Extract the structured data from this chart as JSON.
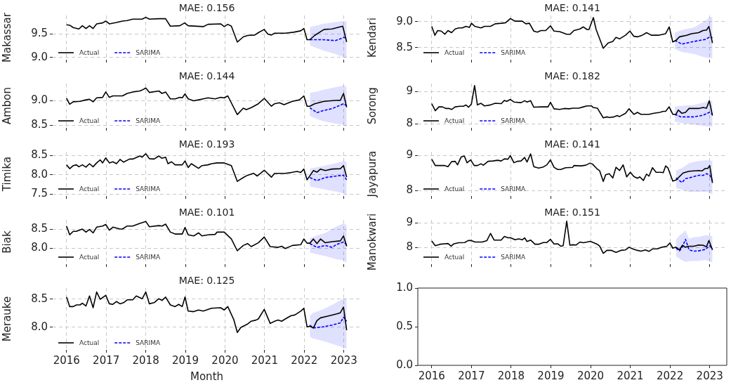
{
  "chart_data": [
    {
      "type": "line",
      "title": "MAE: 0.156",
      "ylabel": "Makassar",
      "xlim": [
        2015.65,
        2023.43
      ],
      "xticks": [
        2016,
        2017,
        2018,
        2019,
        2020,
        2021,
        2022,
        2023
      ],
      "ylim": [
        8.95,
        9.9
      ],
      "yticks": [
        {
          "value": 9,
          "label": "9.0"
        },
        9.5
      ],
      "tick_labels": "y",
      "grid": true,
      "legend": "lower left",
      "series": [
        {
          "name": "Actual",
          "color": "#000000",
          "line_style": "solid",
          "x": [
            2016,
            2016.08,
            2016.17,
            2016.31,
            2016.4,
            2016.49,
            2016.58,
            2016.67,
            2016.76,
            2016.91,
            2016.99,
            2017.08,
            2017.26,
            2017.41,
            2017.53,
            2017.67,
            2017.91,
            2018,
            2018.09,
            2018.33,
            2018.5,
            2018.62,
            2018.86,
            2018.98,
            2019.07,
            2019.45,
            2019.57,
            2019.89,
            2019.98,
            2020.07,
            2020.16,
            2020.31,
            2020.46,
            2020.57,
            2020.75,
            2020.84,
            2020.99,
            2021.08,
            2021.17,
            2021.25,
            2021.52,
            2021.73,
            2021.91,
            2021.99,
            2022.07,
            2022.14,
            2022.26,
            2022.5,
            2022.7,
            2022.97,
            2023.07
          ],
          "values": [
            9.7,
            9.69,
            9.64,
            9.61,
            9.68,
            9.62,
            9.68,
            9.62,
            9.72,
            9.74,
            9.78,
            9.72,
            9.75,
            9.78,
            9.79,
            9.82,
            9.82,
            9.86,
            9.82,
            9.83,
            9.83,
            9.67,
            9.68,
            9.74,
            9.68,
            9.66,
            9.71,
            9.72,
            9.66,
            9.71,
            9.67,
            9.33,
            9.44,
            9.47,
            9.48,
            9.53,
            9.6,
            9.5,
            9.48,
            9.52,
            9.52,
            9.54,
            9.57,
            9.62,
            9.38,
            9.38,
            9.47,
            9.6,
            9.61,
            9.67,
            9.33
          ]
        },
        {
          "name": "SARIMA",
          "color": "#0000ff",
          "line_style": "dashed",
          "x": [
            2022.14,
            2022.47,
            2022.79,
            2023.0,
            2023.07
          ],
          "values": [
            9.38,
            9.38,
            9.36,
            9.43,
            9.41
          ],
          "lower": [
            9.26,
            9.15,
            9.07,
            9.0,
            8.99
          ],
          "upper": [
            9.65,
            9.72,
            9.76,
            9.78,
            9.77
          ]
        }
      ]
    },
    {
      "type": "line",
      "title": "MAE: 0.141",
      "ylabel": "Kendari",
      "xlim": [
        2015.65,
        2023.43
      ],
      "xticks": [
        2016,
        2017,
        2018,
        2019,
        2020,
        2021,
        2022,
        2023
      ],
      "ylim": [
        8.27,
        9.12
      ],
      "yticks": [
        {
          "value": 8.5,
          "label": "8.5"
        },
        {
          "value": 9,
          "label": "9.0"
        }
      ],
      "tick_labels": "y",
      "grid": true,
      "legend": "lower left",
      "series": [
        {
          "name": "Actual",
          "color": "#000000",
          "line_style": "solid",
          "x": [
            2016,
            2016.08,
            2016.15,
            2016.24,
            2016.33,
            2016.41,
            2016.5,
            2016.59,
            2016.68,
            2016.77,
            2016.86,
            2016.95,
            2017,
            2017.09,
            2017.24,
            2017.33,
            2017.48,
            2017.6,
            2017.75,
            2017.86,
            2017.98,
            2018.1,
            2018.28,
            2018.37,
            2018.46,
            2018.57,
            2018.66,
            2018.75,
            2018.87,
            2018.99,
            2019.08,
            2019.22,
            2019.4,
            2019.49,
            2019.58,
            2019.73,
            2019.82,
            2019.91,
            2019.96,
            2020.07,
            2020.14,
            2020.32,
            2020.44,
            2020.56,
            2020.64,
            2020.73,
            2020.88,
            2020.99,
            2021.09,
            2021.18,
            2021.3,
            2021.41,
            2021.53,
            2021.71,
            2021.89,
            2021.98,
            2022.07,
            2022.15,
            2022.24,
            2022.42,
            2022.54,
            2022.72,
            2022.83,
            2022.92,
            2022.98,
            2023.07
          ],
          "values": [
            8.91,
            8.74,
            8.83,
            8.82,
            8.76,
            8.83,
            8.79,
            8.86,
            8.88,
            8.88,
            8.91,
            8.89,
            8.97,
            8.91,
            8.88,
            8.91,
            8.91,
            8.96,
            8.97,
            8.98,
            9.06,
            9.01,
            9.01,
            8.96,
            8.97,
            8.82,
            8.8,
            8.83,
            8.83,
            8.92,
            8.82,
            8.81,
            8.76,
            8.76,
            8.83,
            8.86,
            8.9,
            8.85,
            8.85,
            9.08,
            8.85,
            8.49,
            8.59,
            8.62,
            8.7,
            8.67,
            8.74,
            8.82,
            8.72,
            8.71,
            8.74,
            8.79,
            8.74,
            8.74,
            8.77,
            8.9,
            8.61,
            8.64,
            8.71,
            8.74,
            8.77,
            8.79,
            8.83,
            8.84,
            8.91,
            8.59
          ]
        },
        {
          "name": "SARIMA",
          "color": "#0000ff",
          "line_style": "dashed",
          "x": [
            2022.12,
            2022.3,
            2022.6,
            2022.89,
            2023.01,
            2023.07
          ],
          "values": [
            8.64,
            8.57,
            8.62,
            8.66,
            8.71,
            8.69
          ],
          "lower": [
            8.48,
            8.42,
            8.38,
            8.31,
            8.3,
            8.3
          ],
          "upper": [
            8.79,
            8.84,
            8.89,
            9.02,
            9.09,
            9.09
          ]
        }
      ]
    },
    {
      "type": "line",
      "title": "MAE: 0.144",
      "ylabel": "Ambon",
      "xlim": [
        2015.65,
        2023.43
      ],
      "xticks": [
        2016,
        2017,
        2018,
        2019,
        2020,
        2021,
        2022,
        2023
      ],
      "ylim": [
        8.45,
        9.35
      ],
      "yticks": [
        8.5,
        {
          "value": 9,
          "label": "9.0"
        }
      ],
      "tick_labels": "y",
      "grid": true,
      "legend": "lower left",
      "series": [
        {
          "name": "Actual",
          "color": "#000000",
          "line_style": "solid",
          "x": [
            2016,
            2016.08,
            2016.17,
            2016.34,
            2016.49,
            2016.58,
            2016.67,
            2016.76,
            2016.91,
            2016.99,
            2017.08,
            2017.17,
            2017.41,
            2017.53,
            2017.67,
            2017.85,
            2017.91,
            2018,
            2018.09,
            2018.33,
            2018.41,
            2018.5,
            2018.62,
            2018.74,
            2018.86,
            2018.92,
            2018.99,
            2019.07,
            2019.21,
            2019.33,
            2019.45,
            2019.57,
            2019.75,
            2019.89,
            2019.98,
            2020.07,
            2020.31,
            2020.46,
            2020.54,
            2020.66,
            2020.84,
            2020.99,
            2021.17,
            2021.25,
            2021.37,
            2021.49,
            2021.61,
            2021.7,
            2021.88,
            2021.99,
            2022.07,
            2022.14,
            2022.26,
            2022.5,
            2022.82,
            2022.91,
            2022.99,
            2023.07
          ],
          "values": [
            9.05,
            8.93,
            8.98,
            8.99,
            9.02,
            9.03,
            8.98,
            9.06,
            9.07,
            9.18,
            9.07,
            9.1,
            9.1,
            9.15,
            9.18,
            9.2,
            9.22,
            9.26,
            9.17,
            9.2,
            9.15,
            9.18,
            9.04,
            9.04,
            9.07,
            9.06,
            9.14,
            9.04,
            9.0,
            9.02,
            9.04,
            9.06,
            9.04,
            9.07,
            9.06,
            9.1,
            8.72,
            8.85,
            8.82,
            8.86,
            8.94,
            9.05,
            8.89,
            8.94,
            8.96,
            8.92,
            8.96,
            8.99,
            9.02,
            9.1,
            8.89,
            8.89,
            8.94,
            8.99,
            9.01,
            9.01,
            9.15,
            8.87
          ]
        },
        {
          "name": "SARIMA",
          "color": "#0000ff",
          "line_style": "dashed",
          "x": [
            2022.14,
            2022.32,
            2022.47,
            2022.7,
            2022.99,
            2023.07
          ],
          "values": [
            8.86,
            8.76,
            8.8,
            8.84,
            8.94,
            8.9
          ],
          "lower": [
            8.69,
            8.63,
            8.59,
            8.55,
            8.51,
            8.47
          ],
          "upper": [
            9.16,
            9.19,
            9.22,
            9.26,
            9.31,
            9.28
          ]
        }
      ]
    },
    {
      "type": "line",
      "title": "MAE: 0.182",
      "ylabel": "Sorong",
      "xlim": [
        2015.65,
        2023.43
      ],
      "xticks": [
        2016,
        2017,
        2018,
        2019,
        2020,
        2021,
        2022,
        2023
      ],
      "ylim": [
        7.88,
        9.25
      ],
      "yticks": [
        8,
        9
      ],
      "tick_labels": "y",
      "grid": true,
      "legend": "lower left",
      "series": [
        {
          "name": "Actual",
          "color": "#000000",
          "line_style": "solid",
          "x": [
            2016,
            2016.09,
            2016.18,
            2016.27,
            2016.36,
            2016.44,
            2016.5,
            2016.59,
            2016.71,
            2016.8,
            2016.86,
            2016.93,
            2017,
            2017.08,
            2017.15,
            2017.24,
            2017.33,
            2017.48,
            2017.6,
            2017.75,
            2017.83,
            2017.89,
            2017.98,
            2018.07,
            2018.25,
            2018.34,
            2018.4,
            2018.49,
            2018.57,
            2018.75,
            2018.93,
            2018.99,
            2019.08,
            2019.22,
            2019.34,
            2019.46,
            2019.55,
            2019.7,
            2019.82,
            2019.91,
            2020.02,
            2020.07,
            2020.17,
            2020.32,
            2020.41,
            2020.47,
            2020.59,
            2020.67,
            2020.73,
            2020.88,
            2020.97,
            2021.09,
            2021.18,
            2021.27,
            2021.47,
            2021.59,
            2021.74,
            2021.83,
            2021.89,
            2021.98,
            2022.07,
            2022.15,
            2022.21,
            2022.3,
            2022.39,
            2022.48,
            2022.72,
            2022.83,
            2022.92,
            2022.99,
            2023.07
          ],
          "values": [
            8.63,
            8.41,
            8.53,
            8.53,
            8.48,
            8.48,
            8.45,
            8.53,
            8.55,
            8.55,
            8.59,
            8.52,
            8.62,
            9.19,
            8.59,
            8.64,
            8.56,
            8.59,
            8.64,
            8.63,
            8.73,
            8.7,
            8.76,
            8.68,
            8.66,
            8.72,
            8.68,
            8.72,
            8.52,
            8.53,
            8.53,
            8.67,
            8.47,
            8.45,
            8.48,
            8.47,
            8.49,
            8.49,
            8.53,
            8.56,
            8.56,
            8.51,
            8.49,
            8.19,
            8.22,
            8.2,
            8.22,
            8.26,
            8.23,
            8.33,
            8.47,
            8.3,
            8.36,
            8.3,
            8.3,
            8.33,
            8.36,
            8.39,
            8.39,
            8.53,
            8.3,
            8.3,
            8.43,
            8.33,
            8.36,
            8.48,
            8.48,
            8.51,
            8.49,
            8.72,
            8.26
          ]
        },
        {
          "name": "SARIMA",
          "color": "#0000ff",
          "line_style": "dashed",
          "x": [
            2022.12,
            2022.27,
            2022.6,
            2022.83,
            2022.99,
            2023.07
          ],
          "values": [
            8.3,
            8.22,
            8.22,
            8.27,
            8.36,
            8.3
          ],
          "lower": [
            8.07,
            8.03,
            7.98,
            7.94,
            7.92,
            7.92
          ],
          "upper": [
            8.53,
            8.56,
            8.59,
            8.66,
            8.71,
            8.72
          ]
        }
      ]
    },
    {
      "type": "line",
      "title": "MAE: 0.193",
      "ylabel": "Timika",
      "xlim": [
        2015.65,
        2023.43
      ],
      "xticks": [
        2016,
        2017,
        2018,
        2019,
        2020,
        2021,
        2022,
        2023
      ],
      "ylim": [
        7.45,
        8.6
      ],
      "yticks": [
        7.5,
        {
          "value": 8,
          "label": "8.0"
        },
        8.5
      ],
      "tick_labels": "y",
      "grid": true,
      "legend": "lower left",
      "series": [
        {
          "name": "Actual",
          "color": "#000000",
          "line_style": "solid",
          "x": [
            2016,
            2016.08,
            2016.17,
            2016.25,
            2016.31,
            2016.4,
            2016.49,
            2016.58,
            2016.67,
            2016.76,
            2016.85,
            2016.91,
            2016.99,
            2017.08,
            2017.17,
            2017.26,
            2017.35,
            2017.44,
            2017.59,
            2017.67,
            2017.85,
            2017.91,
            2018,
            2018.09,
            2018.21,
            2018.33,
            2018.41,
            2018.5,
            2018.56,
            2018.65,
            2018.74,
            2018.92,
            2018.99,
            2019.07,
            2019.15,
            2019.33,
            2019.42,
            2019.57,
            2019.66,
            2019.8,
            2019.98,
            2020.16,
            2020.31,
            2020.46,
            2020.57,
            2020.72,
            2020.81,
            2020.99,
            2021.17,
            2021.25,
            2021.52,
            2021.67,
            2021.82,
            2021.91,
            2021.99,
            2022.07,
            2022.23,
            2022.32,
            2022.41,
            2022.53,
            2022.7,
            2022.91,
            2022.99,
            2023.07
          ],
          "values": [
            8.26,
            8.16,
            8.24,
            8.26,
            8.21,
            8.26,
            8.2,
            8.29,
            8.21,
            8.31,
            8.39,
            8.31,
            8.44,
            8.31,
            8.34,
            8.29,
            8.4,
            8.33,
            8.41,
            8.41,
            8.49,
            8.46,
            8.55,
            8.42,
            8.41,
            8.49,
            8.43,
            8.46,
            8.29,
            8.34,
            8.26,
            8.26,
            8.36,
            8.19,
            8.29,
            8.17,
            8.24,
            8.26,
            8.29,
            8.31,
            8.31,
            8.24,
            7.83,
            7.93,
            7.99,
            8.04,
            7.97,
            8.12,
            7.94,
            8.04,
            8.04,
            8.06,
            8.09,
            8.06,
            8.15,
            7.87,
            8.11,
            8.07,
            8.15,
            8.11,
            8.15,
            8.16,
            8.24,
            7.94
          ]
        },
        {
          "name": "SARIMA",
          "color": "#0000ff",
          "line_style": "dashed",
          "x": [
            2022.14,
            2022.32,
            2022.53,
            2022.82,
            2022.99,
            2023.07
          ],
          "values": [
            7.93,
            7.85,
            7.93,
            7.97,
            7.99,
            7.87
          ],
          "lower": [
            7.7,
            7.66,
            7.62,
            7.56,
            7.52,
            7.49
          ],
          "upper": [
            8.16,
            8.2,
            8.24,
            8.31,
            8.36,
            8.34
          ]
        }
      ]
    },
    {
      "type": "line",
      "title": "MAE: 0.141",
      "ylabel": "Jayapura",
      "xlim": [
        2015.65,
        2023.43
      ],
      "xticks": [
        2016,
        2017,
        2018,
        2019,
        2020,
        2021,
        2022,
        2023
      ],
      "ylim": [
        7.85,
        9.1
      ],
      "yticks": [
        8,
        9
      ],
      "tick_labels": "y",
      "grid": true,
      "legend": "lower left",
      "series": [
        {
          "name": "Actual",
          "color": "#000000",
          "line_style": "solid",
          "x": [
            2016,
            2016.09,
            2016.21,
            2016.33,
            2016.41,
            2016.5,
            2016.59,
            2016.65,
            2016.74,
            2016.82,
            2016.89,
            2016.98,
            2017.07,
            2017.15,
            2017.24,
            2017.3,
            2017.42,
            2017.54,
            2017.66,
            2017.75,
            2017.83,
            2017.92,
            2017.98,
            2018.07,
            2018.16,
            2018.25,
            2018.34,
            2018.4,
            2018.49,
            2018.57,
            2018.69,
            2018.81,
            2018.9,
            2018.99,
            2019.08,
            2019.17,
            2019.25,
            2019.37,
            2019.55,
            2019.58,
            2019.76,
            2019.88,
            2019.99,
            2020.05,
            2020.17,
            2020.23,
            2020.32,
            2020.38,
            2020.47,
            2020.56,
            2020.64,
            2020.73,
            2020.82,
            2020.91,
            2021,
            2021.09,
            2021.18,
            2021.24,
            2021.33,
            2021.41,
            2021.47,
            2021.56,
            2021.65,
            2021.77,
            2021.83,
            2021.89,
            2021.95,
            2022.07,
            2022.15,
            2022.33,
            2022.48,
            2022.72,
            2022.81,
            2022.89,
            2022.95,
            2023.0,
            2023.07
          ],
          "values": [
            8.89,
            8.71,
            8.71,
            8.71,
            8.68,
            8.82,
            8.83,
            8.73,
            8.95,
            8.98,
            8.79,
            8.87,
            8.71,
            8.71,
            8.76,
            8.72,
            8.83,
            8.84,
            8.86,
            8.84,
            8.9,
            8.89,
            8.99,
            8.79,
            8.83,
            8.84,
            8.94,
            8.81,
            9.04,
            8.68,
            8.64,
            8.67,
            8.73,
            8.87,
            8.66,
            8.6,
            8.6,
            8.65,
            8.66,
            8.71,
            8.7,
            8.72,
            8.78,
            8.75,
            8.61,
            8.56,
            8.26,
            8.45,
            8.48,
            8.36,
            8.66,
            8.57,
            8.73,
            8.39,
            8.52,
            8.4,
            8.35,
            8.39,
            8.29,
            8.47,
            8.41,
            8.65,
            8.52,
            8.52,
            8.51,
            8.7,
            8.64,
            8.27,
            8.3,
            8.5,
            8.55,
            8.57,
            8.56,
            8.63,
            8.63,
            8.71,
            8.22
          ]
        },
        {
          "name": "SARIMA",
          "color": "#0000ff",
          "line_style": "dashed",
          "x": [
            2022.15,
            2022.3,
            2022.39,
            2022.48,
            2022.63,
            2022.75,
            2022.83,
            2022.92,
            2023.0,
            2023.07
          ],
          "values": [
            8.36,
            8.23,
            8.34,
            8.36,
            8.41,
            8.44,
            8.43,
            8.48,
            8.44,
            8.27
          ],
          "lower": [
            8.08,
            8.03,
            8.0,
            7.97,
            7.97,
            7.97,
            7.97,
            7.97,
            7.93,
            7.89
          ],
          "upper": [
            8.57,
            8.64,
            8.71,
            8.78,
            8.82,
            8.84,
            8.85,
            8.86,
            8.85,
            8.84
          ]
        }
      ]
    },
    {
      "type": "line",
      "title": "MAE: 0.101",
      "ylabel": "Biak",
      "xlim": [
        2015.65,
        2023.43
      ],
      "xticks": [
        2016,
        2017,
        2018,
        2019,
        2020,
        2021,
        2022,
        2023
      ],
      "ylim": [
        7.58,
        8.74
      ],
      "yticks": [
        {
          "value": 8,
          "label": "8.0"
        },
        8.5
      ],
      "tick_labels": "y",
      "grid": true,
      "legend": "lower left",
      "series": [
        {
          "name": "Actual",
          "color": "#000000",
          "line_style": "solid",
          "x": [
            2016,
            2016.08,
            2016.17,
            2016.25,
            2016.4,
            2016.49,
            2016.58,
            2016.67,
            2016.76,
            2016.91,
            2016.99,
            2017.08,
            2017.17,
            2017.35,
            2017.41,
            2017.53,
            2017.67,
            2017.85,
            2018,
            2018.09,
            2018.33,
            2018.41,
            2018.5,
            2018.62,
            2018.74,
            2018.92,
            2018.99,
            2019.07,
            2019.21,
            2019.33,
            2019.42,
            2019.57,
            2019.75,
            2019.8,
            2019.98,
            2020.16,
            2020.31,
            2020.46,
            2020.57,
            2020.66,
            2020.84,
            2020.99,
            2021.14,
            2021.34,
            2021.43,
            2021.52,
            2021.7,
            2021.91,
            2021.99,
            2022.07,
            2022.14,
            2022.23,
            2022.32,
            2022.41,
            2022.53,
            2022.7,
            2022.91,
            2022.99,
            2023.07
          ],
          "values": [
            8.58,
            8.35,
            8.44,
            8.44,
            8.5,
            8.42,
            8.49,
            8.4,
            8.55,
            8.58,
            8.62,
            8.47,
            8.55,
            8.5,
            8.5,
            8.58,
            8.58,
            8.65,
            8.7,
            8.56,
            8.59,
            8.58,
            8.63,
            8.42,
            8.37,
            8.37,
            8.54,
            8.35,
            8.32,
            8.4,
            8.32,
            8.35,
            8.36,
            8.42,
            8.42,
            8.24,
            7.93,
            8.07,
            8.12,
            8.04,
            8.14,
            8.29,
            8.04,
            8.02,
            8.05,
            7.99,
            8.07,
            8.09,
            8.24,
            8.13,
            8.13,
            8.24,
            8.12,
            8.24,
            8.14,
            8.17,
            8.19,
            8.32,
            8.05
          ]
        },
        {
          "name": "SARIMA",
          "color": "#0000ff",
          "line_style": "dashed",
          "x": [
            2022.14,
            2022.32,
            2022.53,
            2022.7,
            2022.82,
            2022.99,
            2023.07
          ],
          "values": [
            8.12,
            8.02,
            8.07,
            8.02,
            8.1,
            8.16,
            8.09
          ],
          "lower": [
            7.89,
            7.84,
            7.79,
            7.74,
            7.71,
            7.68,
            7.61
          ],
          "upper": [
            8.26,
            8.33,
            8.4,
            8.5,
            8.57,
            8.65,
            8.6
          ]
        }
      ]
    },
    {
      "type": "line",
      "title": "MAE: 0.151",
      "ylabel": "Manokwari",
      "xlim": [
        2015.65,
        2023.43
      ],
      "xticks": [
        2016,
        2017,
        2018,
        2019,
        2020,
        2021,
        2022,
        2023
      ],
      "ylim": [
        7.33,
        9.13
      ],
      "yticks": [
        8,
        9
      ],
      "tick_labels": "y",
      "grid": true,
      "legend": "lower left",
      "series": [
        {
          "name": "Actual",
          "color": "#000000",
          "line_style": "solid",
          "x": [
            2016,
            2016.09,
            2016.21,
            2016.33,
            2016.41,
            2016.49,
            2016.56,
            2016.68,
            2016.83,
            2016.92,
            2017,
            2017.09,
            2017.27,
            2017.39,
            2017.48,
            2017.57,
            2017.75,
            2017.83,
            2017.92,
            2017.98,
            2018.1,
            2018.19,
            2018.28,
            2018.34,
            2018.4,
            2018.49,
            2018.6,
            2018.69,
            2018.81,
            2018.9,
            2018.99,
            2019.08,
            2019.17,
            2019.25,
            2019.31,
            2019.4,
            2019.48,
            2019.55,
            2019.64,
            2019.73,
            2019.82,
            2019.91,
            2019.99,
            2020.08,
            2020.17,
            2020.23,
            2020.32,
            2020.41,
            2020.53,
            2020.64,
            2020.76,
            2020.88,
            2020.97,
            2021.06,
            2021.18,
            2021.27,
            2021.38,
            2021.47,
            2021.56,
            2021.68,
            2021.8,
            2021.92,
            2022,
            2022.07,
            2022.15,
            2022.24,
            2022.31,
            2022.39,
            2022.48,
            2022.6,
            2022.72,
            2022.83,
            2022.92,
            2022.98,
            2023.07
          ],
          "values": [
            8.27,
            8.08,
            8.14,
            8.16,
            8.17,
            8.06,
            8.16,
            8.2,
            8.21,
            8.29,
            8.29,
            8.23,
            8.23,
            8.29,
            8.58,
            8.31,
            8.31,
            8.46,
            8.4,
            8.41,
            8.32,
            8.36,
            8.32,
            8.4,
            8.25,
            8.31,
            8.14,
            8.14,
            8.21,
            8.21,
            8.34,
            8.15,
            8.16,
            8.06,
            8.08,
            9.08,
            8.1,
            8.12,
            8.11,
            8.23,
            8.2,
            8.23,
            8.26,
            8.2,
            8.14,
            8.06,
            7.77,
            7.89,
            7.89,
            7.81,
            7.89,
            7.91,
            8.02,
            7.95,
            7.89,
            7.86,
            7.91,
            7.85,
            7.95,
            7.95,
            8.02,
            8.06,
            8.19,
            7.98,
            8.02,
            7.91,
            8.1,
            8.02,
            8.06,
            8.06,
            8.11,
            8.1,
            8.04,
            8.29,
            7.91
          ]
        },
        {
          "name": "SARIMA",
          "color": "#0000ff",
          "line_style": "dashed",
          "x": [
            2022.15,
            2022.24,
            2022.31,
            2022.39,
            2022.48,
            2022.6,
            2022.72,
            2022.89,
            2023.0,
            2023.07
          ],
          "values": [
            7.98,
            7.87,
            8.02,
            8.34,
            7.91,
            7.86,
            7.87,
            7.93,
            8.08,
            7.95
          ],
          "lower": [
            7.65,
            7.55,
            7.48,
            7.42,
            7.45,
            7.46,
            7.46,
            7.5,
            7.45,
            7.38
          ],
          "upper": [
            8.32,
            8.5,
            8.59,
            8.7,
            8.36,
            8.42,
            8.44,
            8.51,
            8.49,
            8.47
          ]
        }
      ]
    },
    {
      "type": "line",
      "title": "MAE: 0.125",
      "ylabel": "Merauke",
      "xlabel": "Month",
      "xlim": [
        2015.65,
        2023.43
      ],
      "xticks": [
        2016,
        2017,
        2018,
        2019,
        2020,
        2021,
        2022,
        2023
      ],
      "ylim": [
        7.6,
        8.7
      ],
      "yticks": [
        {
          "value": 8,
          "label": "8.0"
        },
        8.5
      ],
      "grid": true,
      "legend": "lower left",
      "series": [
        {
          "name": "Actual",
          "color": "#000000",
          "line_style": "solid",
          "x": [
            2016,
            2016.08,
            2016.17,
            2016.25,
            2016.34,
            2016.4,
            2016.49,
            2016.58,
            2016.67,
            2016.76,
            2016.85,
            2016.99,
            2017.08,
            2017.17,
            2017.26,
            2017.35,
            2017.44,
            2017.53,
            2017.67,
            2017.76,
            2017.91,
            2018,
            2018.09,
            2018.21,
            2018.33,
            2018.41,
            2018.5,
            2018.62,
            2018.74,
            2018.83,
            2018.92,
            2018.99,
            2019.07,
            2019.21,
            2019.33,
            2019.45,
            2019.66,
            2019.89,
            2019.98,
            2020.07,
            2020.22,
            2020.31,
            2020.4,
            2020.57,
            2020.66,
            2020.78,
            2020.84,
            2020.99,
            2021.14,
            2021.25,
            2021.34,
            2021.43,
            2021.52,
            2021.67,
            2021.76,
            2021.91,
            2021.99,
            2022.07,
            2022.14,
            2022.23,
            2022.32,
            2022.41,
            2022.59,
            2022.7,
            2022.82,
            2022.91,
            2022.99,
            2023.07
          ],
          "values": [
            8.54,
            8.37,
            8.37,
            8.4,
            8.4,
            8.43,
            8.38,
            8.56,
            8.35,
            8.63,
            8.5,
            8.57,
            8.42,
            8.41,
            8.46,
            8.42,
            8.44,
            8.49,
            8.49,
            8.56,
            8.51,
            8.63,
            8.42,
            8.44,
            8.51,
            8.48,
            8.54,
            8.4,
            8.37,
            8.41,
            8.37,
            8.54,
            8.29,
            8.28,
            8.31,
            8.29,
            8.34,
            8.35,
            8.31,
            8.37,
            8.14,
            7.91,
            8.0,
            8.06,
            8.11,
            8.13,
            8.15,
            8.32,
            8.07,
            8.11,
            8.13,
            8.11,
            8.15,
            8.21,
            8.22,
            8.29,
            8.34,
            8.01,
            8.02,
            7.99,
            8.12,
            8.17,
            8.2,
            8.22,
            8.24,
            8.26,
            8.36,
            7.95
          ]
        },
        {
          "name": "SARIMA",
          "color": "#0000ff",
          "line_style": "dashed",
          "x": [
            2022.14,
            2022.23,
            2022.47,
            2022.7,
            2022.91,
            2022.99,
            2023.07
          ],
          "values": [
            8.04,
            7.99,
            8.01,
            8.04,
            8.08,
            8.18,
            8.11
          ],
          "lower": [
            7.83,
            7.8,
            7.76,
            7.71,
            7.66,
            7.64,
            7.62
          ],
          "upper": [
            8.21,
            8.26,
            8.32,
            8.4,
            8.48,
            8.52,
            8.5
          ]
        }
      ]
    },
    {
      "type": "line",
      "xlim": [
        2015.65,
        2023.43
      ],
      "xticks": [
        2016,
        2017,
        2018,
        2019,
        2020,
        2021,
        2022,
        2023
      ],
      "ylim": [
        0,
        1
      ],
      "yticks": [
        {
          "value": 0,
          "label": "0.0"
        },
        0.5,
        {
          "value": 1,
          "label": "1.0"
        }
      ]
    }
  ]
}
